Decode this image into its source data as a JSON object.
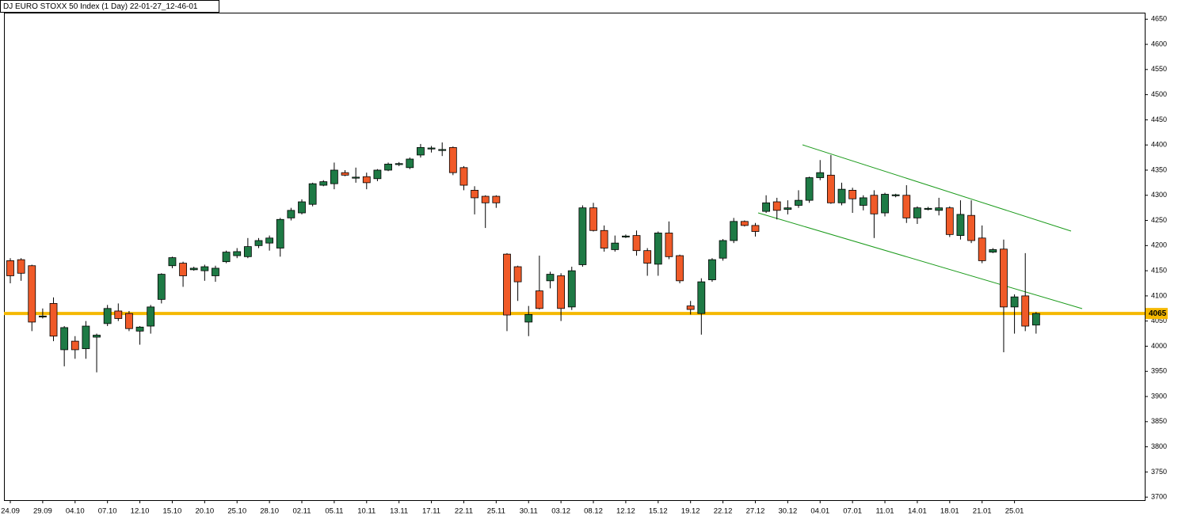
{
  "chart_data": {
    "type": "candlestick",
    "title": "DJ EURO STOXX 50 Index (1 Day) 22-01-27_12-46-01",
    "categories": [
      "24.09",
      null,
      null,
      "29.09",
      null,
      null,
      "04.10",
      null,
      null,
      "07.10",
      null,
      null,
      "12.10",
      null,
      null,
      "15.10",
      null,
      null,
      "20.10",
      null,
      null,
      "25.10",
      null,
      null,
      "28.10",
      null,
      null,
      "02.11",
      null,
      null,
      "05.11",
      null,
      null,
      "10.11",
      null,
      null,
      "13.11",
      null,
      null,
      "17.11",
      null,
      null,
      "22.11",
      null,
      null,
      "25.11",
      null,
      null,
      "30.11",
      null,
      null,
      "03.12",
      null,
      null,
      "08.12",
      null,
      null,
      "12.12",
      null,
      null,
      "15.12",
      null,
      null,
      "19.12",
      null,
      null,
      "22.12",
      null,
      null,
      "27.12",
      null,
      null,
      "30.12",
      null,
      null,
      "04.01",
      null,
      null,
      "07.01",
      null,
      null,
      "11.01",
      null,
      null,
      "14.01",
      null,
      null,
      "18.01",
      null,
      null,
      "21.01",
      null,
      null,
      "25.01",
      null,
      null
    ],
    "open": [
      4170,
      4172,
      4160,
      4058,
      4085,
      3993,
      4010,
      3995,
      4018,
      4045,
      4070,
      4065,
      4030,
      4040,
      4093,
      4160,
      4165,
      4152,
      4150,
      4140,
      4168,
      4180,
      4178,
      4200,
      4205,
      4195,
      4255,
      4265,
      4282,
      4320,
      4323,
      4345,
      4334,
      4337,
      4333,
      4350,
      4361,
      4355,
      4380,
      4392,
      4389,
      4395,
      4355,
      4310,
      4298,
      4298,
      4183,
      4158,
      4048,
      4110,
      4130,
      4140,
      4078,
      4162,
      4275,
      4230,
      4192,
      4217,
      4220,
      4190,
      4163,
      4225,
      4180,
      4080,
      4065,
      4132,
      4175,
      4210,
      4248,
      4240,
      4268,
      4287,
      4272,
      4280,
      4290,
      4335,
      4340,
      4285,
      4310,
      4280,
      4300,
      4265,
      4299,
      4300,
      4255,
      4272,
      4270,
      4275,
      4220,
      4260,
      4215,
      4187,
      4193,
      4078,
      4100,
      4042
    ],
    "high": [
      4175,
      4175,
      4162,
      4075,
      4097,
      4040,
      4020,
      4050,
      4025,
      4082,
      4085,
      4070,
      4040,
      4082,
      4145,
      4178,
      4168,
      4158,
      4162,
      4160,
      4190,
      4195,
      4215,
      4215,
      4220,
      4255,
      4275,
      4292,
      4325,
      4330,
      4365,
      4350,
      4355,
      4345,
      4352,
      4365,
      4366,
      4375,
      4402,
      4398,
      4405,
      4397,
      4358,
      4318,
      4300,
      4300,
      4185,
      4160,
      4080,
      4180,
      4148,
      4145,
      4158,
      4280,
      4285,
      4240,
      4220,
      4222,
      4230,
      4195,
      4228,
      4248,
      4182,
      4090,
      4135,
      4175,
      4213,
      4255,
      4250,
      4245,
      4300,
      4295,
      4290,
      4310,
      4337,
      4370,
      4380,
      4325,
      4315,
      4300,
      4310,
      4305,
      4303,
      4320,
      4278,
      4277,
      4295,
      4278,
      4290,
      4290,
      4240,
      4195,
      4212,
      4103,
      4185,
      4068
    ],
    "low": [
      4125,
      4130,
      4030,
      4055,
      4010,
      3960,
      3975,
      3975,
      3948,
      4040,
      4050,
      4030,
      4003,
      4025,
      4085,
      4155,
      4118,
      4150,
      4130,
      4128,
      4165,
      4175,
      4175,
      4195,
      4190,
      4178,
      4250,
      4262,
      4278,
      4318,
      4312,
      4338,
      4325,
      4312,
      4328,
      4348,
      4358,
      4352,
      4375,
      4385,
      4378,
      4340,
      4310,
      4262,
      4235,
      4275,
      4030,
      4090,
      4020,
      4073,
      4115,
      4050,
      4072,
      4158,
      4228,
      4188,
      4188,
      4215,
      4180,
      4140,
      4140,
      4173,
      4125,
      4063,
      4023,
      4128,
      4170,
      4205,
      4238,
      4218,
      4265,
      4252,
      4262,
      4275,
      4285,
      4330,
      4283,
      4280,
      4265,
      4270,
      4215,
      4258,
      4296,
      4245,
      4243,
      4270,
      4260,
      4217,
      4212,
      4205,
      4165,
      4185,
      3988,
      4025,
      4030,
      4025
    ],
    "close": [
      4140,
      4145,
      4048,
      4060,
      4020,
      4037,
      3993,
      4040,
      4022,
      4075,
      4055,
      4035,
      4038,
      4078,
      4143,
      4176,
      4140,
      4155,
      4158,
      4155,
      4187,
      4188,
      4198,
      4210,
      4215,
      4252,
      4270,
      4287,
      4323,
      4327,
      4350,
      4340,
      4336,
      4325,
      4350,
      4362,
      4363,
      4372,
      4395,
      4394,
      4391,
      4345,
      4320,
      4295,
      4285,
      4285,
      4062,
      4128,
      4063,
      4075,
      4143,
      4075,
      4150,
      4275,
      4230,
      4195,
      4205,
      4219,
      4190,
      4165,
      4225,
      4178,
      4130,
      4073,
      4128,
      4172,
      4210,
      4248,
      4240,
      4228,
      4285,
      4270,
      4275,
      4290,
      4335,
      4345,
      4285,
      4312,
      4293,
      4295,
      4263,
      4302,
      4301,
      4255,
      4275,
      4274,
      4275,
      4222,
      4262,
      4210,
      4170,
      4192,
      4078,
      4098,
      4040,
      4065
    ],
    "up_color": "#1e7a45",
    "down_color": "#f05a28",
    "hline": 4065,
    "hline_color": "#f5b800",
    "ylim": [
      3694,
      4663
    ],
    "yticks": [
      3700,
      3750,
      3800,
      3850,
      3900,
      3950,
      4000,
      4050,
      4100,
      4150,
      4200,
      4250,
      4300,
      4350,
      4400,
      4450,
      4500,
      4550,
      4600,
      4650
    ]
  }
}
